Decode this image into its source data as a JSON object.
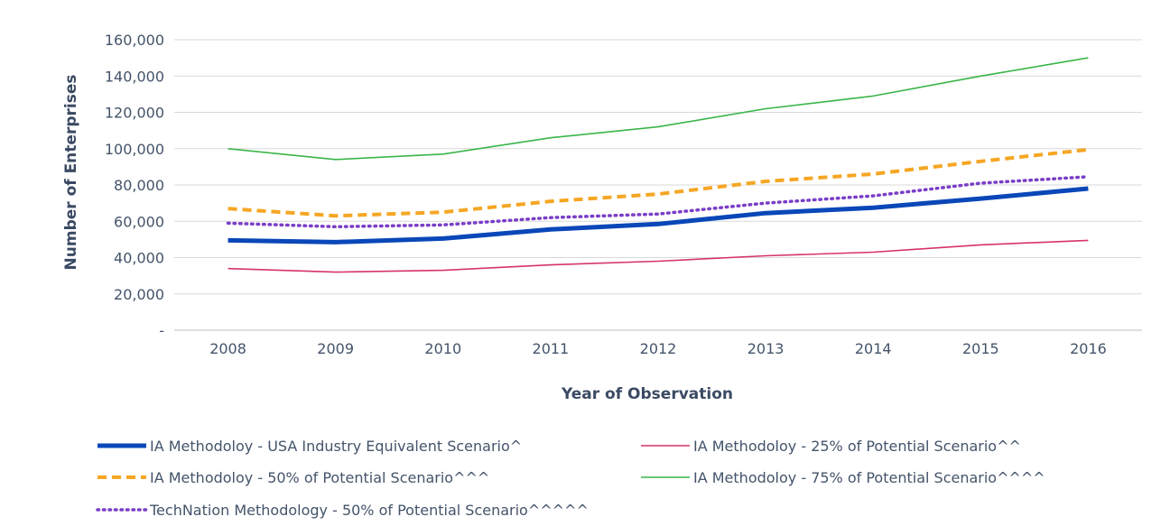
{
  "chart_data": {
    "type": "line",
    "title": "",
    "xlabel": "Year of Observation",
    "ylabel": "Number of Enterprises",
    "categories": [
      "2008",
      "2009",
      "2010",
      "2011",
      "2012",
      "2013",
      "2014",
      "2015",
      "2016"
    ],
    "ylim": [
      0,
      160000
    ],
    "yticks": [
      0,
      20000,
      40000,
      60000,
      80000,
      100000,
      120000,
      140000,
      160000
    ],
    "ytick_labels": [
      "-",
      "20,000",
      "40,000",
      "60,000",
      "80,000",
      "100,000",
      "120,000",
      "140,000",
      "160,000"
    ],
    "grid": true,
    "legend_position": "bottom",
    "series": [
      {
        "name": "IA Methodoloy - USA Industry Equivalent Scenario^",
        "color": "#0a47b8",
        "style": "thick-solid",
        "values": [
          49500,
          48500,
          50500,
          55500,
          58500,
          64500,
          67500,
          72500,
          78000
        ]
      },
      {
        "name": "IA Methodoloy - 25% of Potential Scenario^^",
        "color": "#d6336c",
        "style": "thin-solid",
        "values": [
          34000,
          32000,
          33000,
          36000,
          38000,
          41000,
          43000,
          47000,
          49500
        ]
      },
      {
        "name": "IA Methodoloy - 50% of Potential Scenario^^^",
        "color": "#f5a623",
        "style": "dashed",
        "values": [
          67000,
          63000,
          65000,
          71000,
          75000,
          82000,
          86000,
          93000,
          99500
        ]
      },
      {
        "name": "IA Methodoloy - 75% of Potential Scenario^^^^",
        "color": "#3ab54a",
        "style": "thin-solid",
        "values": [
          100000,
          94000,
          97000,
          106000,
          112000,
          122000,
          129000,
          140000,
          150000
        ]
      },
      {
        "name": "TechNation Methodology - 50% of Potential Scenario^^^^^",
        "color": "#7a3ec8",
        "style": "dotted",
        "values": [
          59000,
          57000,
          58000,
          62000,
          64000,
          70000,
          74000,
          81000,
          84500
        ]
      }
    ]
  }
}
